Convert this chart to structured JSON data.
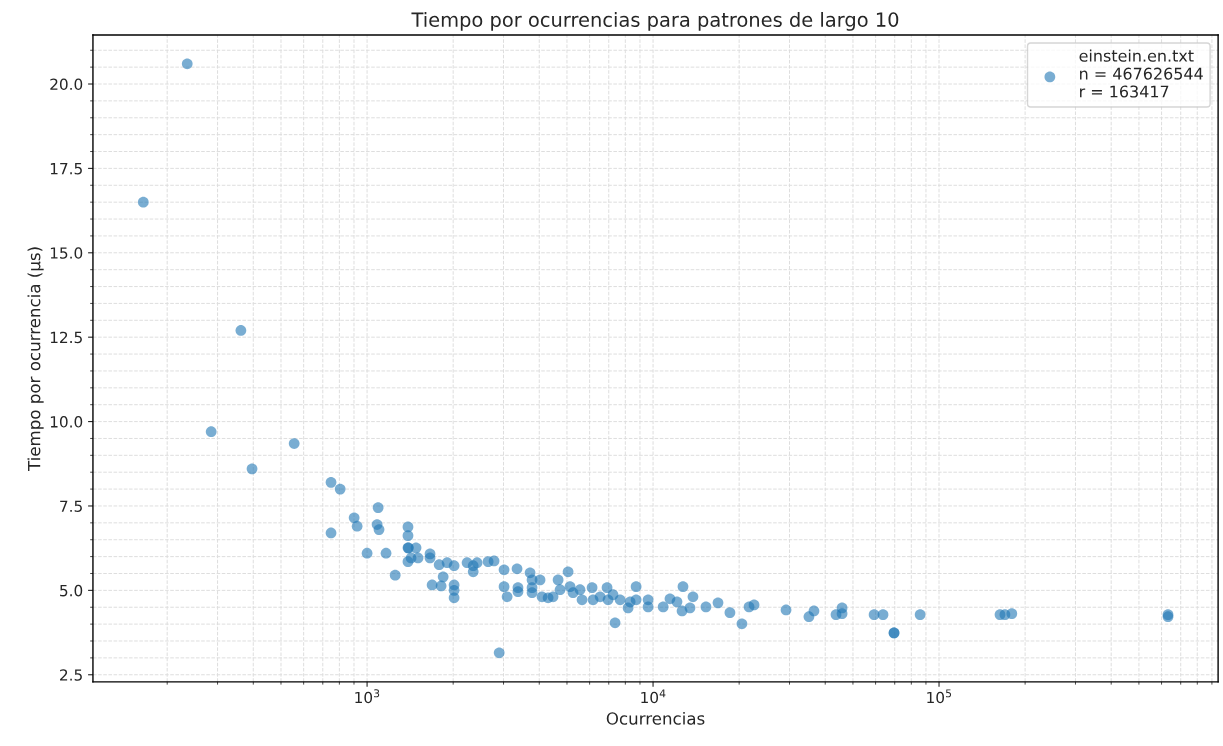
{
  "chart_data": {
    "type": "scatter",
    "title": "Tiempo por ocurrencias para patrones de largo 10",
    "xlabel": "Ocurrencias",
    "ylabel": "Tiempo por ocurrencia (μs)",
    "log": "x",
    "grid": true,
    "legend": "top right",
    "marker": "circle",
    "xlim": [
      110,
      946000
    ],
    "ylim": [
      2.29,
      21.45
    ],
    "xticks": [
      {
        "value": 1000,
        "label": "10$^{3}$"
      },
      {
        "value": 10000,
        "label": "10$^{4}$"
      },
      {
        "value": 100000,
        "label": "10$^{5}$"
      }
    ],
    "yticks": [
      {
        "value": 2.5,
        "label": "2.5"
      },
      {
        "value": 5,
        "label": "5.0"
      },
      {
        "value": 7.5,
        "label": "7.5"
      },
      {
        "value": 10,
        "label": "10.0"
      },
      {
        "value": 12.5,
        "label": "12.5"
      },
      {
        "value": 15,
        "label": "15.0"
      },
      {
        "value": 17.5,
        "label": "17.5"
      },
      {
        "value": 20,
        "label": "20.0"
      }
    ],
    "series": [
      {
        "name": "einstein.en.txt\nn = 467626544\nr = 163417",
        "color": "#1f77b4",
        "x": [
          165,
          235,
          362,
          285,
          396,
          556,
          748,
          805,
          748,
          901,
          923,
          1000,
          1093,
          1084,
          1101,
          1165,
          1254,
          1390,
          1390,
          1395,
          1390,
          1390,
          1425,
          1483,
          1507,
          1660,
          1660,
          1688,
          1815,
          1787,
          1845,
          1905,
          2015,
          2015,
          2015,
          2015,
          2237,
          2350,
          2350,
          2425,
          2650,
          2780,
          2897,
          3013,
          3013,
          3088,
          3345,
          3370,
          3370,
          3715,
          3775,
          3775,
          3775,
          4025,
          4090,
          4295,
          4470,
          4655,
          4730,
          5045,
          5125,
          5250,
          5555,
          5645,
          6120,
          6170,
          6530,
          6905,
          6960,
          7245,
          7365,
          7670,
          8180,
          8315,
          8725,
          8725,
          9610,
          9610,
          10850,
          11460,
          12125,
          12630,
          12725,
          13460,
          13790,
          15310,
          16870,
          18570,
          20450,
          21660,
          22550,
          29180,
          35080,
          36530,
          43630,
          45810,
          45810,
          59290,
          63700,
          69600,
          69600,
          85890,
          163400,
          170000,
          179700,
          632000,
          632000
        ],
        "values": [
          16.5,
          20.6,
          12.7,
          9.7,
          8.6,
          9.35,
          8.2,
          8.0,
          6.7,
          7.15,
          6.9,
          6.1,
          7.45,
          6.95,
          6.8,
          6.1,
          5.45,
          6.88,
          6.62,
          6.26,
          6.26,
          5.85,
          5.96,
          6.26,
          5.96,
          6.08,
          5.96,
          5.16,
          5.13,
          5.76,
          5.4,
          5.82,
          5.73,
          5.16,
          5.0,
          4.78,
          5.82,
          5.73,
          5.55,
          5.82,
          5.85,
          5.87,
          3.15,
          5.61,
          5.11,
          4.81,
          5.64,
          5.08,
          4.96,
          5.52,
          5.31,
          5.08,
          4.93,
          5.31,
          4.81,
          4.78,
          4.81,
          5.31,
          5.02,
          5.55,
          5.11,
          4.93,
          5.02,
          4.72,
          5.08,
          4.72,
          4.81,
          5.08,
          4.72,
          4.87,
          4.04,
          4.72,
          4.48,
          4.66,
          4.72,
          5.11,
          4.72,
          4.51,
          4.51,
          4.75,
          4.66,
          4.39,
          5.11,
          4.48,
          4.81,
          4.51,
          4.63,
          4.34,
          4.01,
          4.51,
          4.57,
          4.42,
          4.22,
          4.39,
          4.28,
          4.31,
          4.48,
          4.28,
          4.28,
          3.74,
          3.74,
          4.28,
          4.28,
          4.28,
          4.31,
          4.22,
          4.28
        ]
      }
    ]
  }
}
